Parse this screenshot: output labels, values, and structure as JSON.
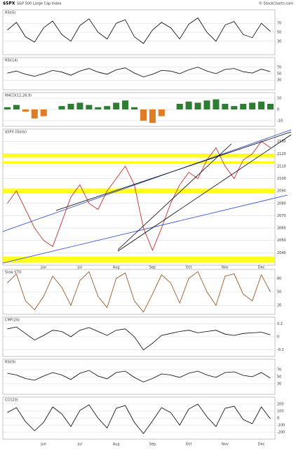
{
  "header": {
    "symbol": "$SPX",
    "name": "S&P 500 Large Cap Index",
    "credit": "© StockCharts.com"
  },
  "chart_data": [
    {
      "type": "line",
      "title": "RSI(5)",
      "color": "#000000",
      "ylim": [
        0,
        100
      ],
      "yticks": [
        30,
        50,
        70
      ],
      "values": [
        55,
        72,
        40,
        28,
        60,
        75,
        45,
        30,
        65,
        80,
        50,
        35,
        70,
        78,
        40,
        25,
        55,
        72,
        60,
        35,
        68,
        82,
        50,
        30,
        66,
        74,
        45,
        38,
        70,
        52
      ]
    },
    {
      "type": "line",
      "title": "RSI(14)",
      "color": "#000000",
      "ylim": [
        0,
        100
      ],
      "yticks": [
        30,
        50,
        70
      ],
      "values": [
        52,
        58,
        48,
        42,
        50,
        60,
        55,
        45,
        58,
        66,
        55,
        48,
        62,
        68,
        52,
        40,
        48,
        60,
        58,
        50,
        62,
        70,
        58,
        50,
        63,
        66,
        56,
        52,
        64,
        56
      ]
    },
    {
      "type": "bar",
      "title": "MACD(12,26,9)",
      "color": "#2e7d32",
      "neg_color": "#e07b26",
      "ylim": [
        -15,
        15
      ],
      "yticks": [
        -10,
        0,
        10
      ],
      "values": [
        2,
        4,
        -2,
        -8,
        -6,
        0,
        3,
        5,
        6,
        4,
        2,
        3,
        6,
        8,
        2,
        -10,
        -12,
        -6,
        0,
        5,
        7,
        6,
        8,
        9,
        5,
        3,
        5,
        6,
        7,
        5
      ]
    },
    {
      "type": "line",
      "title": "$SPX (Daily)",
      "color": "#b71c1c",
      "ylim": [
        2030,
        2140
      ],
      "yticks": [
        2040,
        2050,
        2060,
        2070,
        2080,
        2090,
        2100,
        2110,
        2120,
        2130
      ],
      "categories": [
        null,
        null,
        null,
        null,
        "Jun",
        null,
        null,
        null,
        "Jul",
        null,
        null,
        null,
        "Aug",
        null,
        null,
        null,
        "Sep",
        null,
        null,
        null,
        "Oct",
        null,
        null,
        null,
        "Nov",
        null,
        null,
        null,
        "Dec",
        null
      ],
      "zones": [
        [
          2117,
          2120
        ],
        [
          2112,
          2114
        ],
        [
          2088,
          2092
        ],
        [
          2032,
          2037
        ]
      ],
      "zone_color": "#ffff00",
      "values": [
        2080,
        2090,
        2075,
        2060,
        2050,
        2045,
        2065,
        2085,
        2095,
        2080,
        2075,
        2090,
        2100,
        2110,
        2095,
        2060,
        2042,
        2060,
        2080,
        2095,
        2105,
        2100,
        2115,
        2125,
        2110,
        2100,
        2115,
        2120,
        2130,
        2125
      ]
    },
    {
      "type": "line",
      "title": "Slow STO",
      "color": "#8d4a16",
      "ylim": [
        0,
        100
      ],
      "yticks": [
        20,
        50,
        80
      ],
      "values": [
        70,
        90,
        30,
        10,
        40,
        85,
        60,
        20,
        75,
        95,
        40,
        15,
        80,
        92,
        30,
        5,
        45,
        88,
        70,
        25,
        80,
        95,
        50,
        20,
        85,
        90,
        45,
        30,
        88,
        50
      ]
    },
    {
      "type": "line",
      "title": "CMF(20)",
      "color": "#000000",
      "ylim": [
        -0.3,
        0.3
      ],
      "yticks": [
        -0.2,
        0,
        0.2
      ],
      "values": [
        0.12,
        0.15,
        0.05,
        -0.05,
        0.02,
        0.1,
        0.08,
        0,
        0.1,
        0.14,
        0.08,
        0.02,
        0.1,
        0.12,
        0,
        -0.2,
        -0.1,
        0.02,
        0.05,
        0.08,
        0.1,
        0.06,
        0.08,
        0.1,
        0.04,
        0.02,
        0.05,
        0.06,
        0.07,
        0.03
      ]
    },
    {
      "type": "line",
      "title": "RSI(9)",
      "color": "#000000",
      "ylim": [
        0,
        100
      ],
      "yticks": [
        30,
        50,
        70
      ],
      "values": [
        60,
        55,
        45,
        40,
        52,
        62,
        55,
        42,
        60,
        68,
        52,
        44,
        62,
        66,
        48,
        35,
        45,
        58,
        55,
        48,
        60,
        66,
        55,
        48,
        62,
        64,
        54,
        50,
        62,
        46
      ]
    },
    {
      "type": "line",
      "title": "CCI(20)",
      "color": "#000000",
      "ylim": [
        -300,
        300
      ],
      "yticks": [
        -200,
        -100,
        0,
        100,
        200
      ],
      "values": [
        80,
        150,
        -50,
        -180,
        -60,
        160,
        60,
        -120,
        110,
        190,
        0,
        -140,
        140,
        180,
        -60,
        -220,
        -40,
        150,
        80,
        -100,
        130,
        200,
        20,
        -120,
        140,
        170,
        -20,
        -80,
        160,
        -10
      ]
    }
  ]
}
